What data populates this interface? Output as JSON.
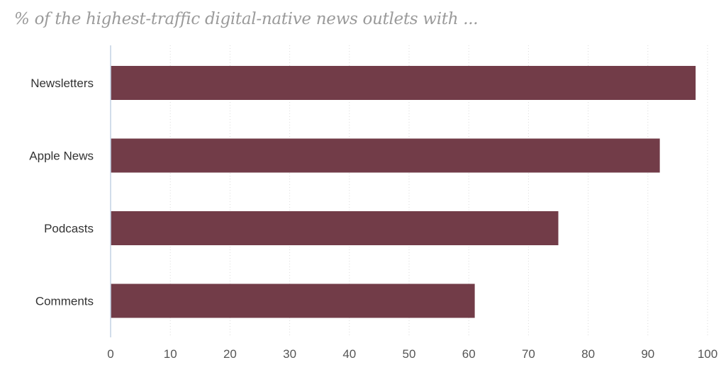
{
  "chart_data": {
    "type": "bar",
    "orientation": "horizontal",
    "title": "% of the highest-traffic digital-native news outlets with ...",
    "categories": [
      "Newsletters",
      "Apple News",
      "Podcasts",
      "Comments"
    ],
    "values": [
      98,
      92,
      75,
      61
    ],
    "xlim": [
      0,
      100
    ],
    "xticks": [
      0,
      10,
      20,
      30,
      40,
      50,
      60,
      70,
      80,
      90,
      100
    ],
    "grid": "vertical-dotted",
    "legend": "none",
    "bar_color": "#723c48"
  }
}
